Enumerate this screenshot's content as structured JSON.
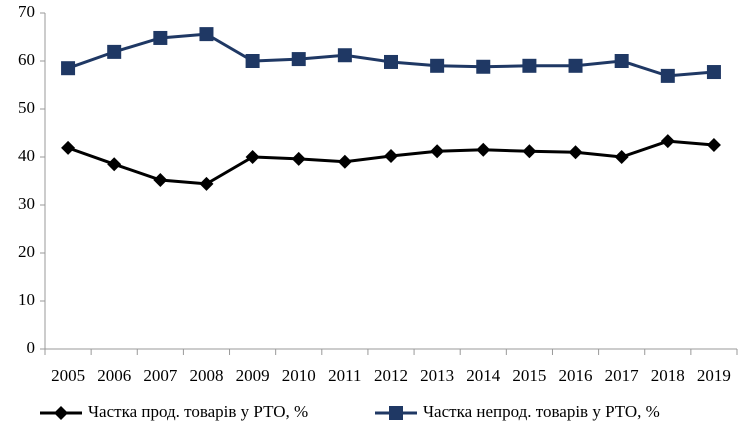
{
  "chart_data": {
    "type": "line",
    "categories": [
      "2005",
      "2006",
      "2007",
      "2008",
      "2009",
      "2010",
      "2011",
      "2012",
      "2013",
      "2014",
      "2015",
      "2016",
      "2017",
      "2018",
      "2019"
    ],
    "series": [
      {
        "name": "Частка прод. товарів у РТО, %",
        "color": "#000000",
        "marker": "diamond",
        "values": [
          41.9,
          38.5,
          35.2,
          34.4,
          40.0,
          39.6,
          39.0,
          40.2,
          41.2,
          41.5,
          41.2,
          41.0,
          40.0,
          43.3,
          42.5
        ]
      },
      {
        "name": "Частка непрод. товарів у РТО, %",
        "color": "#1f3864",
        "marker": "square",
        "values": [
          58.5,
          61.9,
          64.8,
          65.6,
          60.0,
          60.4,
          61.2,
          59.8,
          59.0,
          58.8,
          59.0,
          59.0,
          60.0,
          56.9,
          57.7
        ]
      }
    ],
    "ylim": [
      0,
      70
    ],
    "yticks": [
      0,
      10,
      20,
      30,
      40,
      50,
      60,
      70
    ],
    "grid": false,
    "legend": "bottom"
  }
}
